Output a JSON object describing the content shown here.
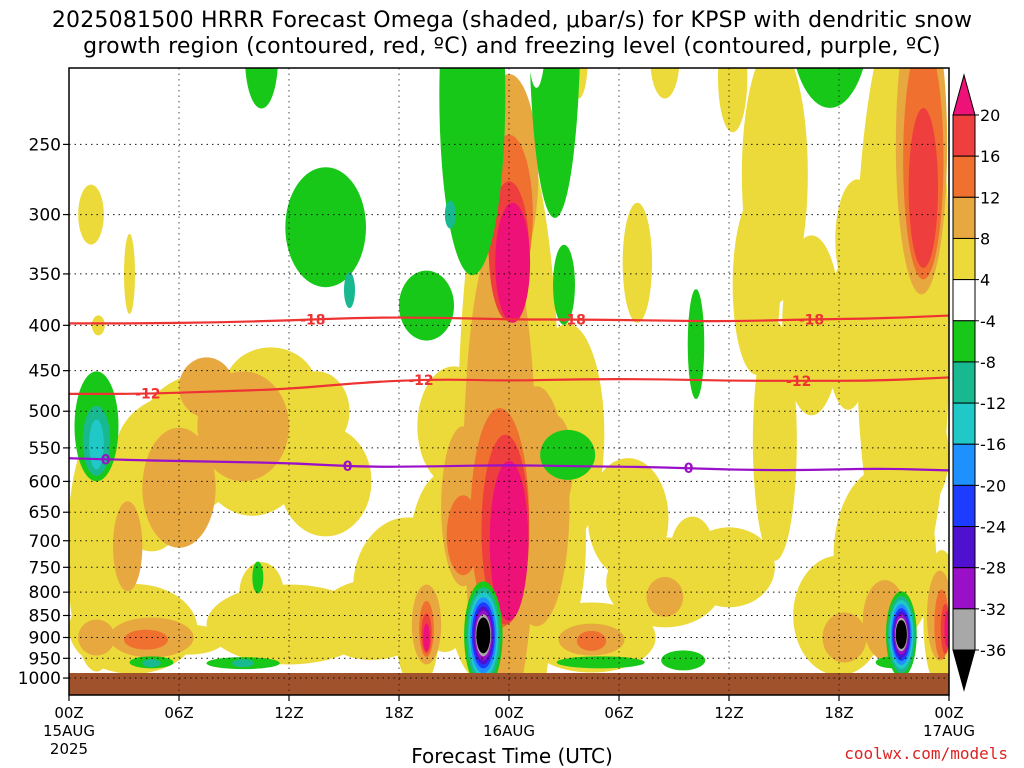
{
  "title_line1": "2025081500 HRRR Forecast Omega (shaded, μbar/s) for KPSP with dendritic snow",
  "title_line2": "growth region (contoured, red, ºC) and freezing level (contoured, purple, ºC)",
  "x_axis_title": "Forecast Time (UTC)",
  "credit": "coolwx.com/models",
  "chart_data": {
    "type": "heatmap",
    "title": "2025081500 HRRR Forecast Omega (shaded, μbar/s) for KPSP with dendritic snow growth region (contoured, red, ºC) and freezing level (contoured, purple, ºC)",
    "xlabel": "Forecast Time (UTC)",
    "ylabel": "",
    "y_scale": "log-pressure (hPa), inverted",
    "y_ticks": [
      250,
      300,
      350,
      400,
      450,
      500,
      550,
      600,
      650,
      700,
      750,
      800,
      850,
      900,
      950,
      1000
    ],
    "x_range_hours": [
      0,
      48
    ],
    "x_ticks": [
      {
        "hour": 0,
        "label": "00Z",
        "date": "15AUG",
        "year": "2025"
      },
      {
        "hour": 6,
        "label": "06Z"
      },
      {
        "hour": 12,
        "label": "12Z"
      },
      {
        "hour": 18,
        "label": "18Z"
      },
      {
        "hour": 24,
        "label": "00Z",
        "date": "16AUG"
      },
      {
        "hour": 30,
        "label": "06Z"
      },
      {
        "hour": 36,
        "label": "12Z"
      },
      {
        "hour": 42,
        "label": "18Z"
      },
      {
        "hour": 48,
        "label": "00Z",
        "date": "17AUG"
      }
    ],
    "grid": true,
    "colorbar": {
      "labels": [
        "20",
        "16",
        "12",
        "8",
        "4",
        "-4",
        "-8",
        "-12",
        "-16",
        "-20",
        "-24",
        "-28",
        "-32",
        "-36"
      ],
      "bins": [
        {
          "range": ">20",
          "color": "#ee1177"
        },
        {
          "range": "16 to 20",
          "color": "#ef3e3e"
        },
        {
          "range": "12 to 16",
          "color": "#f07030"
        },
        {
          "range": "8 to 12",
          "color": "#e8a840"
        },
        {
          "range": "4 to 8",
          "color": "#ecd93a"
        },
        {
          "range": "-4 to 4",
          "color": "#ffffff"
        },
        {
          "range": "-8 to -4",
          "color": "#18c818"
        },
        {
          "range": "-12 to -8",
          "color": "#18b890"
        },
        {
          "range": "-16 to -12",
          "color": "#20c8c8"
        },
        {
          "range": "-20 to -16",
          "color": "#1e90ff"
        },
        {
          "range": "-24 to -20",
          "color": "#1e3cff"
        },
        {
          "range": "-28 to -24",
          "color": "#5010d0"
        },
        {
          "range": "-32 to -28",
          "color": "#9a10c8"
        },
        {
          "range": "-36 to -32",
          "color": "#a8a8a8"
        },
        {
          "range": "<-36",
          "color": "#000000"
        }
      ]
    },
    "contours": [
      {
        "name": "-18",
        "color": "#ee3333",
        "points": [
          [
            0,
            398
          ],
          [
            4,
            398
          ],
          [
            8,
            397
          ],
          [
            12,
            395
          ],
          [
            16,
            392
          ],
          [
            20,
            392
          ],
          [
            24,
            394
          ],
          [
            28,
            394
          ],
          [
            32,
            395
          ],
          [
            36,
            396
          ],
          [
            40,
            394
          ],
          [
            44,
            393
          ],
          [
            48,
            390
          ]
        ],
        "labels": [
          {
            "hour": 13.3,
            "text": "-18"
          },
          {
            "hour": 27.5,
            "text": "-18"
          },
          {
            "hour": 40.5,
            "text": "-18"
          }
        ]
      },
      {
        "name": "-12",
        "color": "#ee3333",
        "points": [
          [
            0,
            478
          ],
          [
            4,
            478
          ],
          [
            8,
            475
          ],
          [
            12,
            472
          ],
          [
            16,
            464
          ],
          [
            20,
            460
          ],
          [
            24,
            462
          ],
          [
            28,
            460
          ],
          [
            32,
            460
          ],
          [
            36,
            462
          ],
          [
            40,
            462
          ],
          [
            44,
            462
          ],
          [
            48,
            458
          ]
        ],
        "labels": [
          {
            "hour": 4.3,
            "text": "-12"
          },
          {
            "hour": 19.2,
            "text": "-12"
          },
          {
            "hour": 39.8,
            "text": "-12"
          }
        ]
      },
      {
        "name": "0",
        "color": "#9a10c8",
        "points": [
          [
            0,
            565
          ],
          [
            4,
            568
          ],
          [
            8,
            570
          ],
          [
            12,
            572
          ],
          [
            16,
            578
          ],
          [
            20,
            577
          ],
          [
            24,
            575
          ],
          [
            28,
            577
          ],
          [
            32,
            578
          ],
          [
            36,
            582
          ],
          [
            40,
            583
          ],
          [
            44,
            580
          ],
          [
            48,
            583
          ]
        ],
        "labels": [
          {
            "hour": 2,
            "text": "0"
          },
          {
            "hour": 15.2,
            "text": "0"
          },
          {
            "hour": 33.8,
            "text": "0"
          }
        ]
      }
    ],
    "omega_features": [
      {
        "hour": 22.6,
        "pressure": 905,
        "value": -40,
        "note": "strong upward motion core"
      },
      {
        "hour": 45.4,
        "pressure": 900,
        "value": -40,
        "note": "strong upward motion core"
      },
      {
        "hour": 24.0,
        "pressure": 330,
        "value": 22,
        "note": "strong downward motion"
      },
      {
        "hour": 24.0,
        "pressure": 730,
        "value": 22,
        "note": "strong downward motion"
      },
      {
        "hour": 46.5,
        "pressure": 280,
        "value": 17,
        "note": "downward motion"
      },
      {
        "hour": 1.5,
        "pressure": 540,
        "value": -12,
        "note": "upward motion"
      }
    ],
    "terrain_color": "#a0522d"
  }
}
